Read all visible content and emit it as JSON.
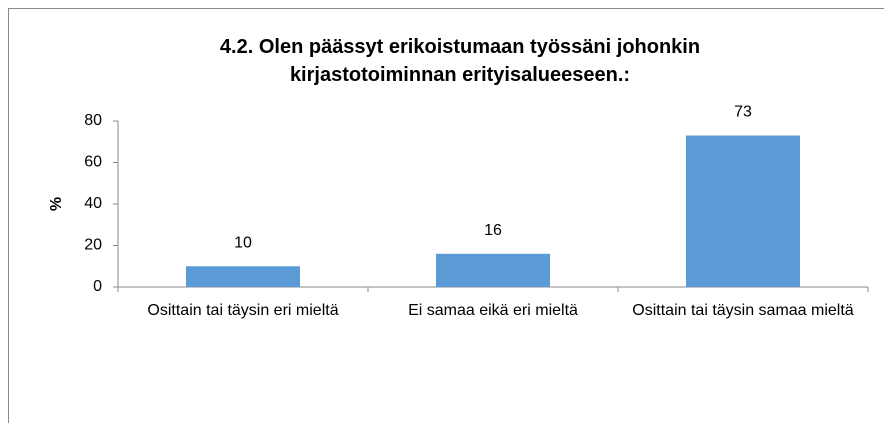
{
  "chart_data": {
    "type": "bar",
    "title": "4.2. Olen päässyt erikoistumaan työssäni johonkin kirjastotoiminnan erityisalueeseen.:",
    "y_label": "%",
    "categories": [
      "Osittain tai täysin eri mieltä",
      "Ei samaa eikä eri mieltä",
      "Osittain tai täysin samaa mieltä"
    ],
    "values": [
      10,
      16,
      73
    ],
    "color": "#5b9bd5",
    "ylim": [
      0,
      80
    ],
    "yticks": [
      0,
      20,
      40,
      60,
      80
    ],
    "grid": false
  }
}
